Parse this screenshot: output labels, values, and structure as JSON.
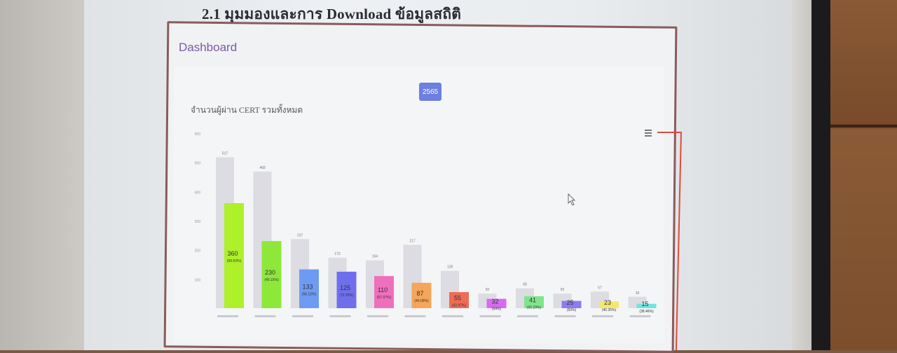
{
  "slide": {
    "heading": "2.1 มุมมองและการ Download ข้อมูลสถิติ",
    "corner_text": "..."
  },
  "dashboard": {
    "title": "Dashboard",
    "year_button": "2565"
  },
  "icons": {
    "menu": "hamburger-menu-icon",
    "cursor": "mouse-pointer-icon"
  },
  "colors": {
    "frame": "#8a5b5b",
    "laser": "#e14b3a",
    "year_button": "#6d7fe0",
    "total_bar": "#dcdce2"
  },
  "chart_data": {
    "type": "bar",
    "title": "จำนวนผู้ผ่าน CERT รวมทั้งหมด",
    "ylim": [
      0,
      600
    ],
    "yticks": [
      100,
      200,
      300,
      400,
      500,
      600
    ],
    "series": [
      {
        "values": [
          517,
          468,
          237,
          173,
          164,
          217,
          128,
          50,
          68,
          50,
          57,
          39
        ]
      },
      {
        "values": [
          360,
          230,
          133,
          125,
          110,
          87,
          55,
          32,
          41,
          25,
          23,
          15
        ],
        "labels": [
          "360",
          "230",
          "133",
          "125",
          "110",
          "87",
          "55",
          "32",
          "41",
          "25",
          "23",
          "15"
        ],
        "sublabels": [
          "(69.63%)",
          "(49.15%)",
          "(56.12%)",
          "(72.25%)",
          "(67.07%)",
          "(40.09%)",
          "(42.97%)",
          "(64%)",
          "(60.29%)",
          "(50%)",
          "(40.35%)",
          "(38.46%)"
        ],
        "colors": [
          "#aef02a",
          "#8ee83a",
          "#6d9bf4",
          "#6f6fee",
          "#f06fbd",
          "#f5a65a",
          "#ef6b55",
          "#d86af0",
          "#7fe58c",
          "#8f7af0",
          "#f3e86a",
          "#6fe5e0"
        ]
      }
    ]
  }
}
